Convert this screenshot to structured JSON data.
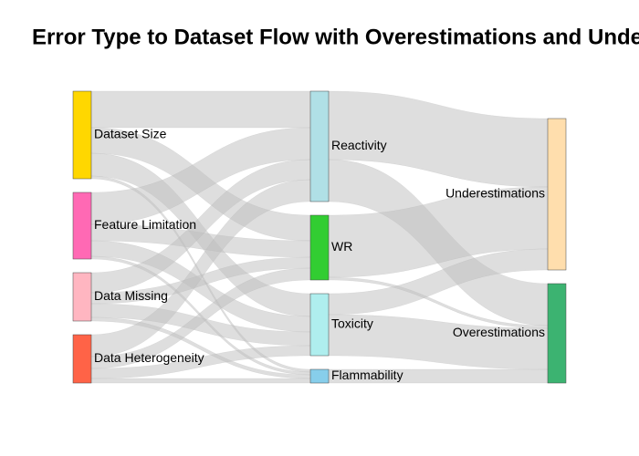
{
  "chart_data": {
    "type": "sankey",
    "title": "Error Type to Dataset Flow with Overestimations and Underestimations",
    "link_color": "rgba(190,190,190,0.5)",
    "nodes": [
      {
        "label": "Dataset Size",
        "color": "#FFD700"
      },
      {
        "label": "Feature Limitation",
        "color": "#FF69B4"
      },
      {
        "label": "Data Missing",
        "color": "#FFB6C1"
      },
      {
        "label": "Data Heterogeneity",
        "color": "#FF6347"
      },
      {
        "label": "Reactivity",
        "color": "#B0E0E6"
      },
      {
        "label": "WR",
        "color": "#32CD32"
      },
      {
        "label": "Toxicity",
        "color": "#AFEEEE"
      },
      {
        "label": "Flammability",
        "color": "#87CEEB"
      },
      {
        "label": "Underestimations",
        "color": "#FFDEAD"
      },
      {
        "label": "Overestimations",
        "color": "#3CB371"
      }
    ],
    "links": [
      {
        "source": 0,
        "target": 4,
        "value": 40
      },
      {
        "source": 0,
        "target": 5,
        "value": 28
      },
      {
        "source": 0,
        "target": 6,
        "value": 25
      },
      {
        "source": 0,
        "target": 7,
        "value": 3
      },
      {
        "source": 1,
        "target": 4,
        "value": 35
      },
      {
        "source": 1,
        "target": 5,
        "value": 18
      },
      {
        "source": 1,
        "target": 6,
        "value": 17
      },
      {
        "source": 1,
        "target": 7,
        "value": 3
      },
      {
        "source": 2,
        "target": 4,
        "value": 22
      },
      {
        "source": 2,
        "target": 5,
        "value": 12
      },
      {
        "source": 2,
        "target": 6,
        "value": 15
      },
      {
        "source": 2,
        "target": 7,
        "value": 4
      },
      {
        "source": 3,
        "target": 4,
        "value": 24
      },
      {
        "source": 3,
        "target": 5,
        "value": 13
      },
      {
        "source": 3,
        "target": 6,
        "value": 11
      },
      {
        "source": 3,
        "target": 7,
        "value": 5
      },
      {
        "source": 4,
        "target": 8,
        "value": 75
      },
      {
        "source": 4,
        "target": 9,
        "value": 46
      },
      {
        "source": 5,
        "target": 8,
        "value": 68
      },
      {
        "source": 5,
        "target": 9,
        "value": 3
      },
      {
        "source": 6,
        "target": 8,
        "value": 23
      },
      {
        "source": 6,
        "target": 9,
        "value": 45
      },
      {
        "source": 7,
        "target": 9,
        "value": 15
      }
    ]
  }
}
